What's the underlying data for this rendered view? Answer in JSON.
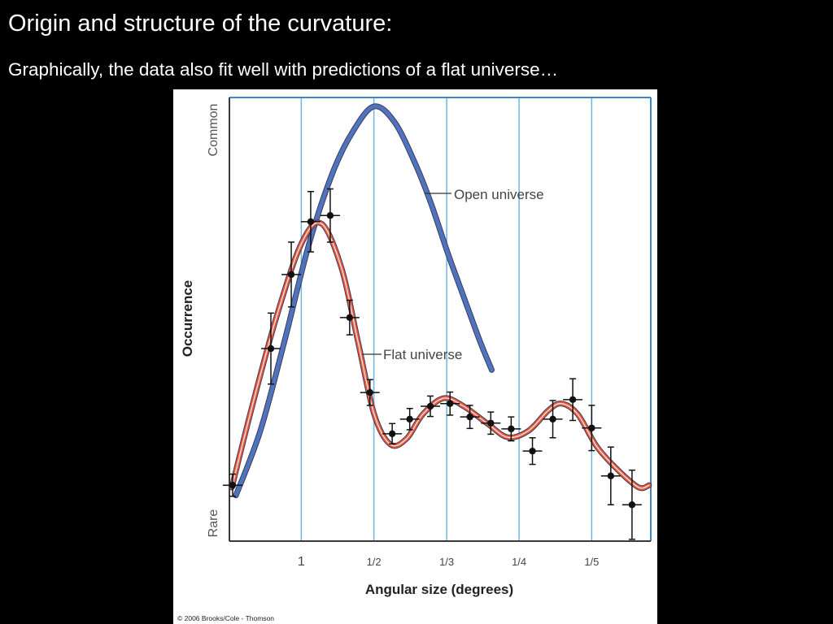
{
  "slide": {
    "title": "Origin and structure of the curvature:",
    "subtitle": "Graphically, the data also fit well with predictions of a flat universe…"
  },
  "chart_data": {
    "type": "line",
    "x_label": "Angular size (degrees)",
    "y_label": "Occurrence",
    "y_low_label": "Rare",
    "y_high_label": "Common",
    "credit": "© 2006 Brooks/Cole - Thomson",
    "x_scale": "reciprocal",
    "xlim": [
      100,
      0.172
    ],
    "xticks": [
      1,
      {
        "value": 0.5,
        "label": "1/2"
      },
      {
        "value": 0.333,
        "label": "1/3"
      },
      {
        "value": 0.25,
        "label": "1/4"
      },
      {
        "value": 0.2,
        "label": "1/5"
      }
    ],
    "ylim": [
      0,
      100
    ],
    "grid": true,
    "series": [
      {
        "name": "Open universe",
        "color": "#4f74bd",
        "x": [
          10.0,
          2.29,
          1.3,
          0.903,
          0.693,
          0.58,
          0.499,
          0.438,
          0.39,
          0.359,
          0.332,
          0.309,
          0.289,
          0.276
        ],
        "values": [
          10.3,
          24.9,
          45.1,
          67.0,
          83.5,
          92.7,
          98.0,
          94.5,
          85.3,
          76.2,
          65.2,
          55.1,
          45.1,
          38.6
        ]
      },
      {
        "name": "Flat universe",
        "color": "#ea5a3f",
        "x": [
          22.9,
          3.09,
          1.52,
          1.0,
          0.784,
          0.643,
          0.562,
          0.499,
          0.449,
          0.408,
          0.374,
          0.338,
          0.309,
          0.28,
          0.26,
          0.242,
          0.227,
          0.218,
          0.208,
          0.197,
          0.186,
          0.177,
          0.1727
        ],
        "values": [
          12.1,
          30.4,
          50.5,
          67.0,
          71.6,
          61.5,
          45.1,
          28.6,
          21.8,
          23.1,
          28.6,
          32.2,
          30.4,
          26.4,
          23.4,
          24.9,
          29.5,
          31.0,
          28.6,
          21.2,
          15.8,
          12.1,
          12.6
        ]
      }
    ],
    "measurements": {
      "color": "#111111",
      "x": [
        18.2,
        1.72,
        1.16,
        0.885,
        0.715,
        0.6,
        0.514,
        0.444,
        0.401,
        0.36,
        0.328,
        0.301,
        0.277,
        0.257,
        0.239,
        0.224,
        0.211,
        0.2,
        0.19,
        0.18
      ],
      "values": [
        12.6,
        43.4,
        60.1,
        72.0,
        73.4,
        50.4,
        33.5,
        24.2,
        27.5,
        30.4,
        31.0,
        28.0,
        26.6,
        25.3,
        20.3,
        27.5,
        31.9,
        25.5,
        14.7,
        8.2
      ],
      "errors": [
        2.5,
        8,
        7.3,
        6.8,
        6,
        3.9,
        2.9,
        2.3,
        2.4,
        2.3,
        2.6,
        2.6,
        2.5,
        2.7,
        3,
        4.2,
        4.7,
        5.1,
        6.5,
        7.8
      ]
    }
  }
}
